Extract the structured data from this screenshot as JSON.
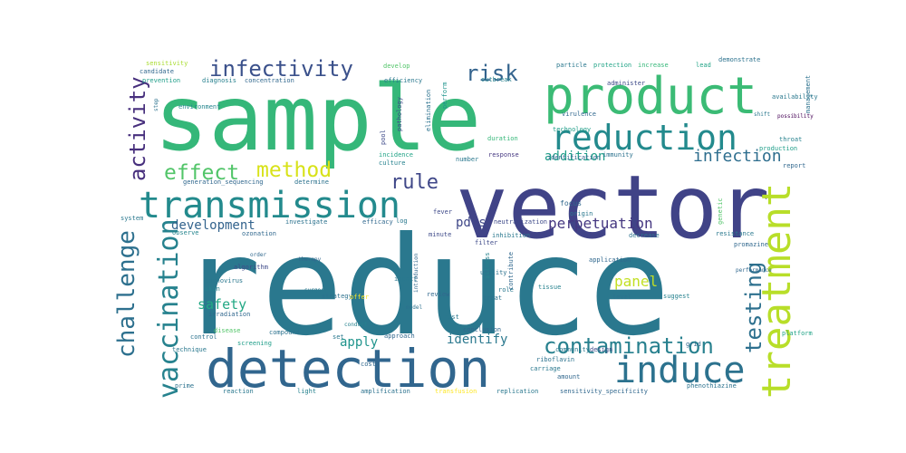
{
  "colors": {
    "background": "#ffffff",
    "palette": [
      "#440154",
      "#482878",
      "#3e4a89",
      "#31688e",
      "#26828e",
      "#1f9e89",
      "#35b779",
      "#6ece58",
      "#b5de2b",
      "#fde725"
    ]
  },
  "words": [
    {
      "text": "reduce",
      "color": "#2a788e"
    },
    {
      "text": "sample",
      "color": "#35b779"
    },
    {
      "text": "vector",
      "color": "#404387"
    },
    {
      "text": "product",
      "color": "#3bbb75"
    },
    {
      "text": "detection",
      "color": "#31668e"
    },
    {
      "text": "reduction",
      "color": "#238a8d"
    },
    {
      "text": "transmission",
      "color": "#238a8d"
    },
    {
      "text": "induce",
      "color": "#2c728e"
    },
    {
      "text": "treatment",
      "color": "#b8de29"
    },
    {
      "text": "contamination",
      "color": "#27808e"
    },
    {
      "text": "infectivity",
      "color": "#3b518b"
    },
    {
      "text": "vaccination",
      "color": "#26828e"
    },
    {
      "text": "challenge",
      "color": "#2d708e"
    },
    {
      "text": "testing",
      "color": "#2d708e"
    },
    {
      "text": "activity",
      "color": "#472f7d"
    },
    {
      "text": "method",
      "color": "#d8e219"
    },
    {
      "text": "effect",
      "color": "#52c569"
    },
    {
      "text": "risk",
      "color": "#33638d"
    },
    {
      "text": "rule",
      "color": "#3f4788"
    },
    {
      "text": "infection",
      "color": "#2e6e8e"
    },
    {
      "text": "safety",
      "color": "#22a884"
    },
    {
      "text": "development",
      "color": "#33638d"
    },
    {
      "text": "perpetuation",
      "color": "#453781"
    },
    {
      "text": "addition",
      "color": "#1f9e89"
    },
    {
      "text": "panel",
      "color": "#c2df23"
    },
    {
      "text": "apply",
      "color": "#1f948c"
    },
    {
      "text": "identify",
      "color": "#2a788e"
    },
    {
      "text": "pdcs",
      "color": "#3f4788"
    },
    {
      "text": "sensitivity",
      "color": "#aadc32"
    },
    {
      "text": "candidate",
      "color": "#31688e"
    },
    {
      "text": "prevention",
      "color": "#1f9e89"
    },
    {
      "text": "diagnosis",
      "color": "#27808e"
    },
    {
      "text": "develop",
      "color": "#52c569"
    },
    {
      "text": "particle",
      "color": "#2a788e"
    },
    {
      "text": "protection",
      "color": "#20a386"
    },
    {
      "text": "increase",
      "color": "#35b779"
    },
    {
      "text": "lead",
      "color": "#20a386"
    },
    {
      "text": "demonstrate",
      "color": "#2c728e"
    },
    {
      "text": "concentration",
      "color": "#31688e"
    },
    {
      "text": "efficiency",
      "color": "#2a788e"
    },
    {
      "text": "environment",
      "color": "#25858e"
    },
    {
      "text": "pathology",
      "color": "#3e4a89"
    },
    {
      "text": "elimination",
      "color": "#2c728e"
    },
    {
      "text": "perform",
      "color": "#1f948c"
    },
    {
      "text": "outbreak",
      "color": "#26828e"
    },
    {
      "text": "administer",
      "color": "#3e4a89"
    },
    {
      "text": "virulence",
      "color": "#31688e"
    },
    {
      "text": "technology",
      "color": "#1f9e89"
    },
    {
      "text": "management",
      "color": "#2c728e"
    },
    {
      "text": "availability",
      "color": "#2a788e"
    },
    {
      "text": "possibility",
      "color": "#440154"
    },
    {
      "text": "throat",
      "color": "#26828e"
    },
    {
      "text": "pool",
      "color": "#3e4a89"
    },
    {
      "text": "incidence",
      "color": "#20a386"
    },
    {
      "text": "response",
      "color": "#453781"
    },
    {
      "text": "identification",
      "color": "#31688e"
    },
    {
      "text": "immunity",
      "color": "#2c728e"
    },
    {
      "text": "production",
      "color": "#1f9e89"
    },
    {
      "text": "report",
      "color": "#31688e"
    },
    {
      "text": "culture",
      "color": "#26828e"
    },
    {
      "text": "number",
      "color": "#2a788e"
    },
    {
      "text": "generation_sequencing",
      "color": "#31688e"
    },
    {
      "text": "determine",
      "color": "#2c728e"
    },
    {
      "text": "focus",
      "color": "#31688e"
    },
    {
      "text": "origin",
      "color": "#2a788e"
    },
    {
      "text": "genetic",
      "color": "#52c569"
    },
    {
      "text": "fever",
      "color": "#3e4a89"
    },
    {
      "text": "neutralization",
      "color": "#3e4a89"
    },
    {
      "text": "investigate",
      "color": "#2c728e"
    },
    {
      "text": "efficacy",
      "color": "#31688e"
    },
    {
      "text": "log",
      "color": "#2a788e"
    },
    {
      "text": "observe",
      "color": "#25858e"
    },
    {
      "text": "ozonation",
      "color": "#31688e"
    },
    {
      "text": "inhibition",
      "color": "#2a788e"
    },
    {
      "text": "decrease",
      "color": "#2c728e"
    },
    {
      "text": "resistance",
      "color": "#2a788e"
    },
    {
      "text": "promazine",
      "color": "#31688e"
    },
    {
      "text": "filter",
      "color": "#3e4a89"
    },
    {
      "text": "utility",
      "color": "#2c728e"
    },
    {
      "text": "illness",
      "color": "#26828e"
    },
    {
      "text": "algorithm",
      "color": "#3e4a89"
    },
    {
      "text": "therapy",
      "color": "#31688e"
    },
    {
      "text": "adenovirus",
      "color": "#2a788e"
    },
    {
      "text": "skin",
      "color": "#26828e"
    },
    {
      "text": "impact",
      "color": "#2a788e"
    },
    {
      "text": "application",
      "color": "#31688e"
    },
    {
      "text": "level",
      "color": "#2c728e"
    },
    {
      "text": "suggest",
      "color": "#26828e"
    },
    {
      "text": "strategy",
      "color": "#2c728e"
    },
    {
      "text": "role",
      "color": "#2a788e"
    },
    {
      "text": "contribute",
      "color": "#31688e"
    },
    {
      "text": "irradiation",
      "color": "#31688e"
    },
    {
      "text": "disease",
      "color": "#52c569"
    },
    {
      "text": "compound",
      "color": "#2c728e"
    },
    {
      "text": "host",
      "color": "#2a788e"
    },
    {
      "text": "control",
      "color": "#2c728e"
    },
    {
      "text": "screening",
      "color": "#1f9e89"
    },
    {
      "text": "set",
      "color": "#2a788e"
    },
    {
      "text": "approach",
      "color": "#31688e"
    },
    {
      "text": "conclusion",
      "color": "#31688e"
    },
    {
      "text": "community",
      "color": "#2a788e"
    },
    {
      "text": "design",
      "color": "#3e4a89"
    },
    {
      "text": "grid",
      "color": "#31688e"
    },
    {
      "text": "platform",
      "color": "#20a386"
    },
    {
      "text": "technique",
      "color": "#2a788e"
    },
    {
      "text": "cost",
      "color": "#31688e"
    },
    {
      "text": "riboflavin",
      "color": "#2c728e"
    },
    {
      "text": "carriage",
      "color": "#2a788e"
    },
    {
      "text": "amount",
      "color": "#31688e"
    },
    {
      "text": "prime",
      "color": "#2c728e"
    },
    {
      "text": "reaction",
      "color": "#2a788e"
    },
    {
      "text": "light",
      "color": "#26828e"
    },
    {
      "text": "amplification",
      "color": "#2c728e"
    },
    {
      "text": "transfusion",
      "color": "#fde725"
    },
    {
      "text": "replication",
      "color": "#2a788e"
    },
    {
      "text": "sensitivity_specificity",
      "color": "#31688e"
    },
    {
      "text": "phenothiazine",
      "color": "#2c728e"
    },
    {
      "text": "system",
      "color": "#2a788e"
    },
    {
      "text": "treat",
      "color": "#2c728e"
    },
    {
      "text": "review",
      "color": "#31688e"
    },
    {
      "text": "tissue",
      "color": "#26828e"
    },
    {
      "text": "offer",
      "color": "#fde725"
    },
    {
      "text": "minute",
      "color": "#3e4a89"
    },
    {
      "text": "duration",
      "color": "#35b779"
    },
    {
      "text": "performance",
      "color": "#31688e"
    },
    {
      "text": "introduction",
      "color": "#31688e"
    },
    {
      "text": "model",
      "color": "#2c728e"
    },
    {
      "text": "conduct",
      "color": "#26828e"
    },
    {
      "text": "surgery",
      "color": "#2a788e"
    },
    {
      "text": "shift",
      "color": "#2a788e"
    },
    {
      "text": "order",
      "color": "#31688e"
    },
    {
      "text": "step",
      "color": "#2c728e"
    }
  ]
}
